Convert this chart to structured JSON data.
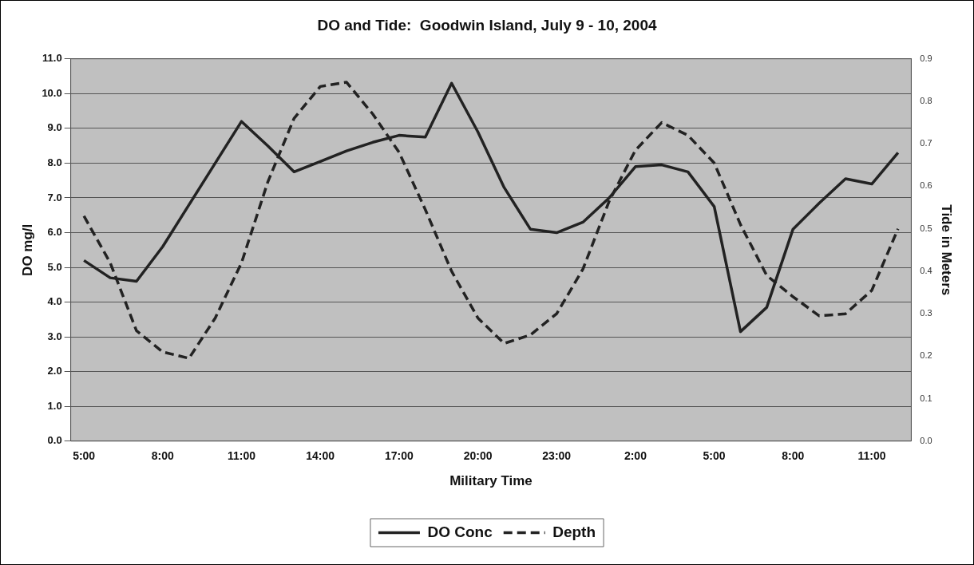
{
  "chart_data": {
    "type": "line",
    "title": "DO and Tide:  Goodwin Island, July 9 - 10, 2004",
    "xlabel": "Military Time",
    "ylabel": "DO mg/l",
    "y2label": "Tide in Meters",
    "categories": [
      "5:00",
      null,
      null,
      "8:00",
      null,
      null,
      "11:00",
      null,
      null,
      "14:00",
      null,
      null,
      "17:00",
      null,
      null,
      "20:00",
      null,
      null,
      "23:00",
      null,
      null,
      "2:00",
      null,
      null,
      "5:00",
      null,
      null,
      "8:00",
      null,
      null,
      "11:00",
      null
    ],
    "series": [
      {
        "name": "DO Conc",
        "color": "#222222",
        "line_style": "solid",
        "values": [
          5.2,
          4.7,
          4.6,
          5.6,
          6.8,
          8.0,
          9.2,
          8.5,
          7.75,
          8.05,
          8.35,
          8.6,
          8.8,
          8.75,
          10.3,
          8.9,
          7.3,
          6.1,
          6.0,
          6.3,
          7.0,
          7.9,
          7.95,
          7.75,
          6.75,
          3.15,
          3.85,
          6.1,
          6.85,
          7.55,
          7.4,
          8.3
        ]
      },
      {
        "name": "Depth",
        "color": "#222222",
        "line_style": "dashed",
        "axis": "y2",
        "values": [
          0.53,
          0.42,
          0.26,
          0.21,
          0.195,
          0.29,
          0.42,
          0.61,
          0.76,
          0.835,
          0.845,
          0.77,
          0.68,
          0.545,
          0.4,
          0.29,
          0.23,
          0.25,
          0.3,
          0.405,
          0.565,
          0.685,
          0.75,
          0.72,
          0.655,
          0.51,
          0.39,
          0.34,
          0.295,
          0.3,
          0.355,
          0.5
        ]
      }
    ],
    "ylim": [
      0,
      11
    ],
    "yticks": [
      {
        "value": 0,
        "label": "0.0"
      },
      {
        "value": 1,
        "label": "1.0"
      },
      {
        "value": 2,
        "label": "2.0"
      },
      {
        "value": 3,
        "label": "3.0"
      },
      {
        "value": 4,
        "label": "4.0"
      },
      {
        "value": 5,
        "label": "5.0"
      },
      {
        "value": 6,
        "label": "6.0"
      },
      {
        "value": 7,
        "label": "7.0"
      },
      {
        "value": 8,
        "label": "8.0"
      },
      {
        "value": 9,
        "label": "9.0"
      },
      {
        "value": 10,
        "label": "10.0"
      },
      {
        "value": 11,
        "label": "11.0"
      }
    ],
    "y2lim": [
      0,
      0.9
    ],
    "y2ticks": [
      {
        "value": 0,
        "label": "0.0"
      },
      {
        "value": 0.1,
        "label": "0.1"
      },
      {
        "value": 0.2,
        "label": "0.2"
      },
      {
        "value": 0.3,
        "label": "0.3"
      },
      {
        "value": 0.4,
        "label": "0.4"
      },
      {
        "value": 0.5,
        "label": "0.5"
      },
      {
        "value": 0.6,
        "label": "0.6"
      },
      {
        "value": 0.7,
        "label": "0.7"
      },
      {
        "value": 0.8,
        "label": "0.8"
      },
      {
        "value": 0.9,
        "label": "0.9"
      }
    ],
    "grid": "y",
    "legend": "bottom",
    "marker": "none"
  }
}
